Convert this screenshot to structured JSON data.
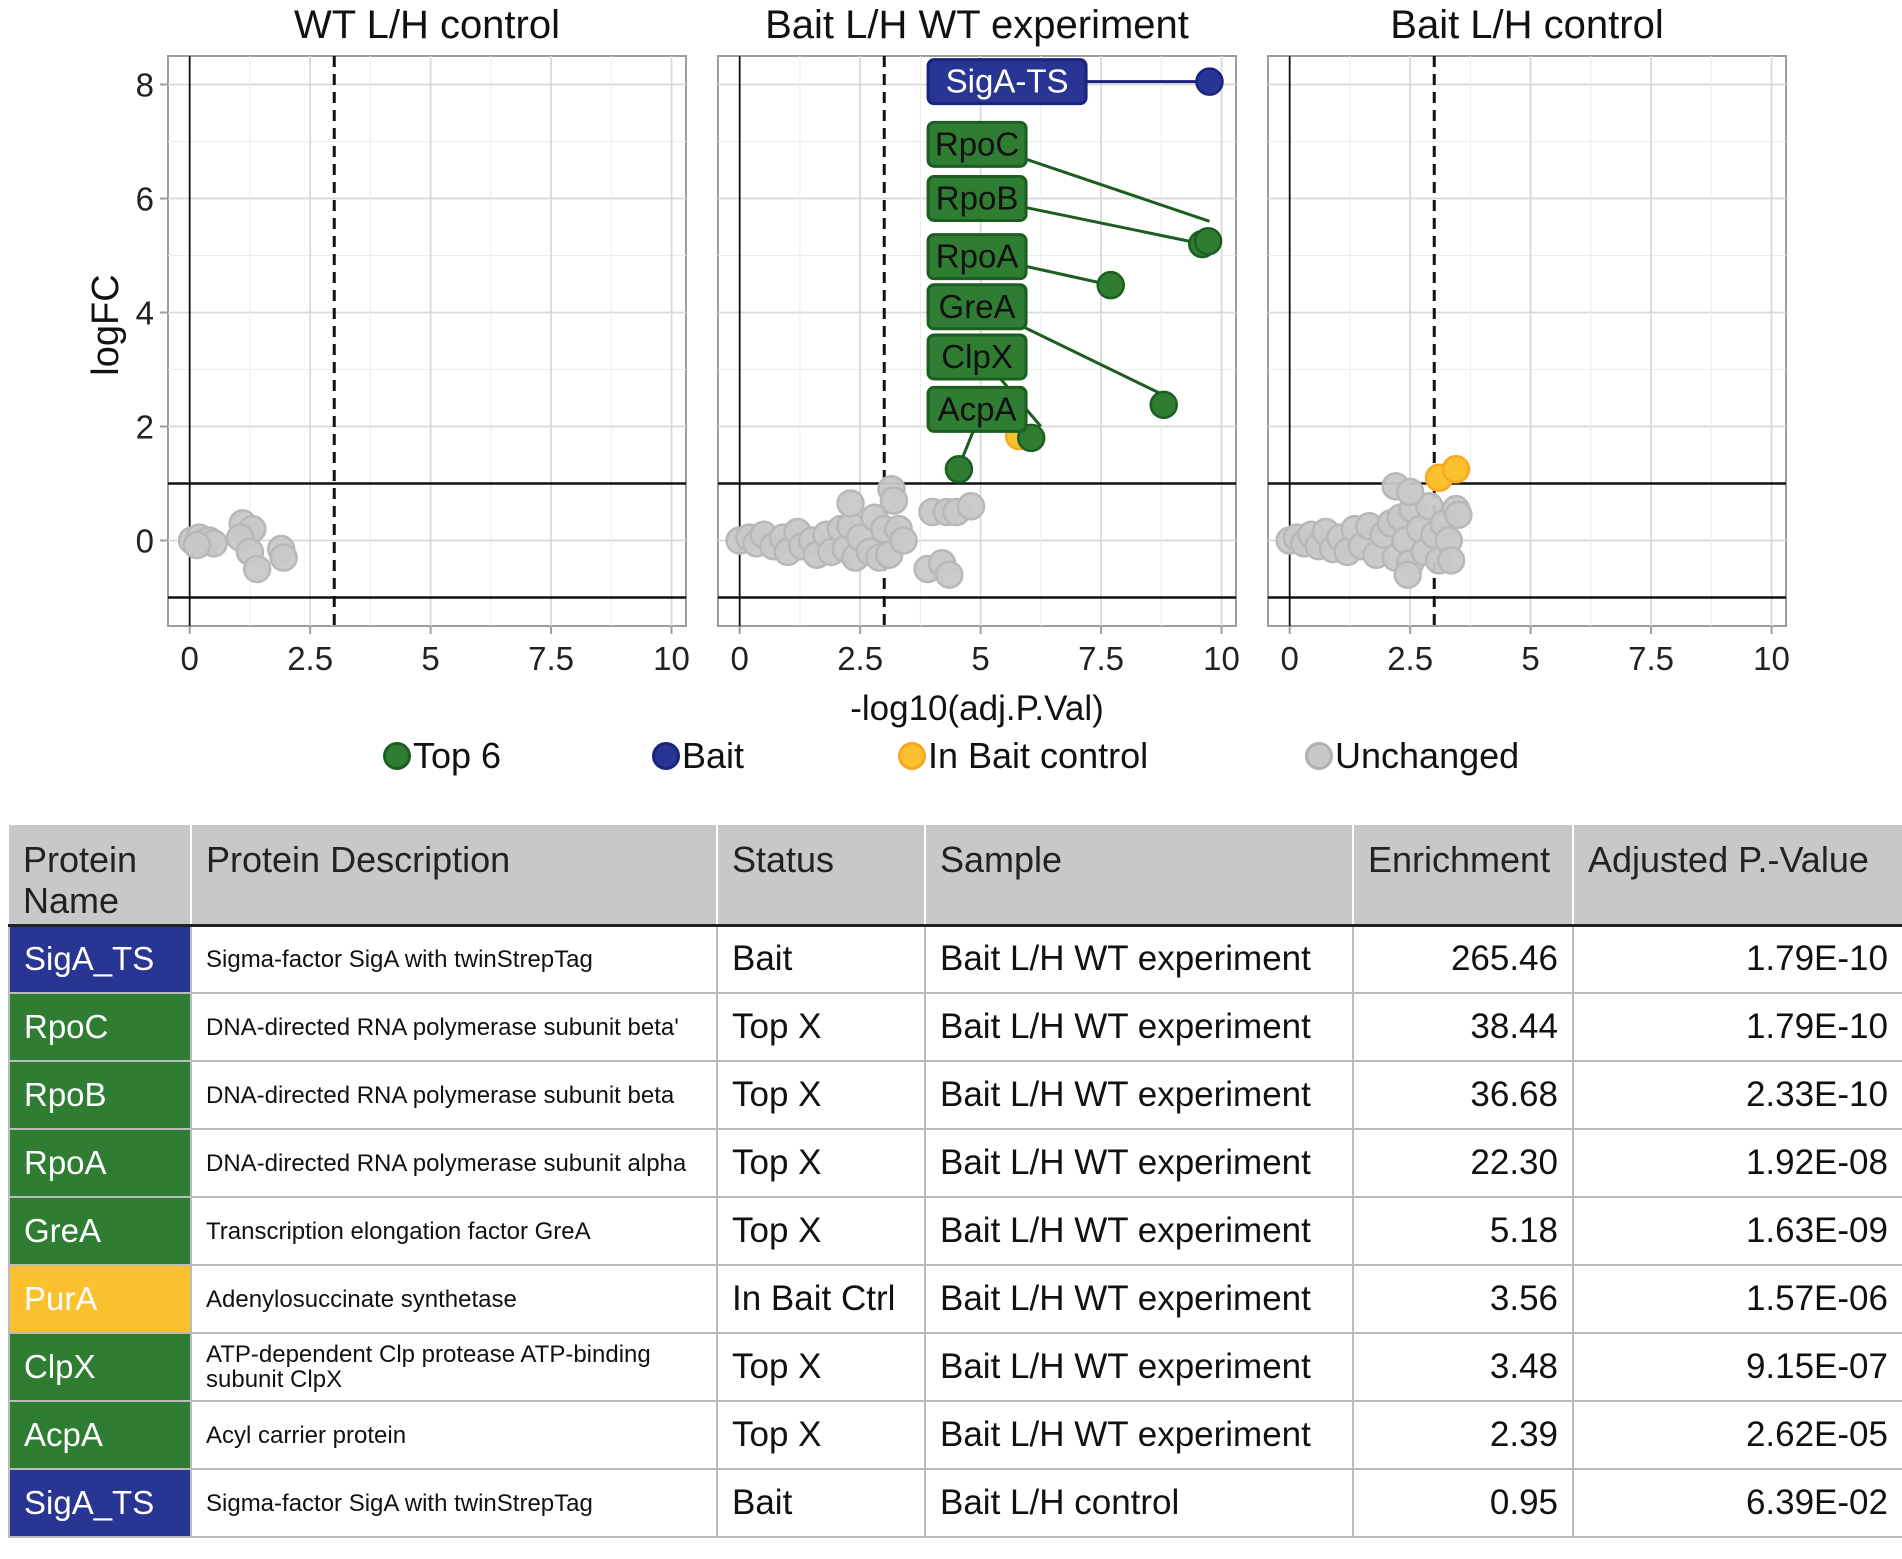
{
  "colors": {
    "top": "#2e7d32",
    "bait": "#283593",
    "ctrl": "#fbc02d",
    "unchanged": "#c8c8c8"
  },
  "chart_data": {
    "type": "scatter",
    "xlabel": "-log10(adj.P.Val)",
    "ylabel": "logFC",
    "xlim": [
      -0.45,
      10.3
    ],
    "ylim": [
      -1.5,
      8.5
    ],
    "xticks": [
      0,
      2.5,
      5,
      7.5,
      10
    ],
    "xtick_labels": [
      "0",
      "2.5",
      "5",
      "7.5",
      "10"
    ],
    "yticks": [
      0,
      2,
      4,
      6,
      8
    ],
    "ytick_labels": [
      "0",
      "2",
      "4",
      "6",
      "8"
    ],
    "hlines": [
      1,
      -1
    ],
    "vline_solid": 0,
    "vline_dashed": 3,
    "legend": [
      {
        "label": "Top 6",
        "color_key": "top"
      },
      {
        "label": "Bait",
        "color_key": "bait"
      },
      {
        "label": "In Bait control",
        "color_key": "ctrl"
      },
      {
        "label": "Unchanged",
        "color_key": "unchanged"
      }
    ],
    "panels": [
      {
        "title": "WT L/H control",
        "points": [
          {
            "x": 0.05,
            "y": 0.0,
            "g": "unchanged"
          },
          {
            "x": 0.2,
            "y": 0.05,
            "g": "unchanged"
          },
          {
            "x": 0.3,
            "y": -0.03,
            "g": "unchanged"
          },
          {
            "x": 0.4,
            "y": 0.0,
            "g": "unchanged"
          },
          {
            "x": 0.5,
            "y": -0.05,
            "g": "unchanged"
          },
          {
            "x": 0.15,
            "y": -0.08,
            "g": "unchanged"
          },
          {
            "x": 1.1,
            "y": 0.3,
            "g": "unchanged"
          },
          {
            "x": 1.2,
            "y": 0.1,
            "g": "unchanged"
          },
          {
            "x": 1.3,
            "y": 0.2,
            "g": "unchanged"
          },
          {
            "x": 1.05,
            "y": 0.05,
            "g": "unchanged"
          },
          {
            "x": 1.25,
            "y": -0.2,
            "g": "unchanged"
          },
          {
            "x": 1.4,
            "y": -0.5,
            "g": "unchanged"
          },
          {
            "x": 1.9,
            "y": -0.15,
            "g": "unchanged"
          },
          {
            "x": 1.95,
            "y": -0.3,
            "g": "unchanged"
          }
        ],
        "labels": []
      },
      {
        "title": "Bait L/H WT experiment",
        "points": [
          {
            "x": 0.0,
            "y": 0.0,
            "g": "unchanged"
          },
          {
            "x": 0.2,
            "y": 0.05,
            "g": "unchanged"
          },
          {
            "x": 0.35,
            "y": -0.05,
            "g": "unchanged"
          },
          {
            "x": 0.5,
            "y": 0.1,
            "g": "unchanged"
          },
          {
            "x": 0.7,
            "y": -0.1,
            "g": "unchanged"
          },
          {
            "x": 0.9,
            "y": 0.05,
            "g": "unchanged"
          },
          {
            "x": 1.0,
            "y": -0.2,
            "g": "unchanged"
          },
          {
            "x": 1.2,
            "y": 0.15,
            "g": "unchanged"
          },
          {
            "x": 1.3,
            "y": -0.1,
            "g": "unchanged"
          },
          {
            "x": 1.5,
            "y": 0.0,
            "g": "unchanged"
          },
          {
            "x": 1.6,
            "y": -0.25,
            "g": "unchanged"
          },
          {
            "x": 1.8,
            "y": 0.1,
            "g": "unchanged"
          },
          {
            "x": 1.9,
            "y": -0.2,
            "g": "unchanged"
          },
          {
            "x": 2.1,
            "y": 0.2,
            "g": "unchanged"
          },
          {
            "x": 2.2,
            "y": -0.15,
            "g": "unchanged"
          },
          {
            "x": 2.3,
            "y": 0.25,
            "g": "unchanged"
          },
          {
            "x": 2.4,
            "y": -0.3,
            "g": "unchanged"
          },
          {
            "x": 2.5,
            "y": 0.05,
            "g": "unchanged"
          },
          {
            "x": 2.7,
            "y": -0.2,
            "g": "unchanged"
          },
          {
            "x": 2.8,
            "y": 0.4,
            "g": "unchanged"
          },
          {
            "x": 2.9,
            "y": -0.3,
            "g": "unchanged"
          },
          {
            "x": 3.0,
            "y": 0.2,
            "g": "unchanged"
          },
          {
            "x": 3.1,
            "y": -0.25,
            "g": "unchanged"
          },
          {
            "x": 2.3,
            "y": 0.65,
            "g": "unchanged"
          },
          {
            "x": 3.15,
            "y": 0.9,
            "g": "unchanged"
          },
          {
            "x": 3.2,
            "y": 0.7,
            "g": "unchanged"
          },
          {
            "x": 3.3,
            "y": 0.2,
            "g": "unchanged"
          },
          {
            "x": 4.0,
            "y": 0.5,
            "g": "unchanged"
          },
          {
            "x": 4.3,
            "y": 0.5,
            "g": "unchanged"
          },
          {
            "x": 4.5,
            "y": 0.5,
            "g": "unchanged"
          },
          {
            "x": 4.8,
            "y": 0.6,
            "g": "unchanged"
          },
          {
            "x": 3.9,
            "y": -0.5,
            "g": "unchanged"
          },
          {
            "x": 4.2,
            "y": -0.4,
            "g": "unchanged"
          },
          {
            "x": 4.35,
            "y": -0.6,
            "g": "unchanged"
          },
          {
            "x": 3.4,
            "y": 0.0,
            "g": "unchanged"
          },
          {
            "x": 5.8,
            "y": 1.83,
            "g": "ctrl"
          },
          {
            "x": 4.55,
            "y": 1.25,
            "g": "top"
          },
          {
            "x": 6.05,
            "y": 1.8,
            "g": "top"
          },
          {
            "x": 8.8,
            "y": 2.38,
            "g": "top"
          },
          {
            "x": 7.7,
            "y": 4.48,
            "g": "top"
          },
          {
            "x": 9.6,
            "y": 5.2,
            "g": "top"
          },
          {
            "x": 9.72,
            "y": 5.25,
            "g": "top"
          },
          {
            "x": 9.75,
            "y": 8.05,
            "g": "bait"
          }
        ],
        "labels": [
          {
            "text": "SigA-TS",
            "g": "bait",
            "lx": 4.2,
            "ly": 8.05,
            "px": 9.75,
            "py": 8.05
          },
          {
            "text": "RpoC",
            "g": "top",
            "lx": 4.2,
            "ly": 6.95,
            "px": 9.75,
            "py": 5.6
          },
          {
            "text": "RpoB",
            "g": "top",
            "lx": 4.2,
            "ly": 6.0,
            "px": 9.62,
            "py": 5.2
          },
          {
            "text": "RpoA",
            "g": "top",
            "lx": 4.2,
            "ly": 4.98,
            "px": 7.7,
            "py": 4.48
          },
          {
            "text": "GreA",
            "g": "top",
            "lx": 4.2,
            "ly": 4.1,
            "px": 8.8,
            "py": 2.55
          },
          {
            "text": "ClpX",
            "g": "top",
            "lx": 4.2,
            "ly": 3.22,
            "px": 6.25,
            "py": 2.0
          },
          {
            "text": "AcpA",
            "g": "top",
            "lx": 4.2,
            "ly": 2.3,
            "px": 4.55,
            "py": 1.3
          }
        ]
      },
      {
        "title": "Bait L/H control",
        "points": [
          {
            "x": 0.0,
            "y": 0.0,
            "g": "unchanged"
          },
          {
            "x": 0.15,
            "y": 0.05,
            "g": "unchanged"
          },
          {
            "x": 0.3,
            "y": -0.05,
            "g": "unchanged"
          },
          {
            "x": 0.45,
            "y": 0.1,
            "g": "unchanged"
          },
          {
            "x": 0.6,
            "y": -0.1,
            "g": "unchanged"
          },
          {
            "x": 0.75,
            "y": 0.15,
            "g": "unchanged"
          },
          {
            "x": 0.9,
            "y": -0.15,
            "g": "unchanged"
          },
          {
            "x": 1.05,
            "y": 0.05,
            "g": "unchanged"
          },
          {
            "x": 1.2,
            "y": -0.2,
            "g": "unchanged"
          },
          {
            "x": 1.35,
            "y": 0.2,
            "g": "unchanged"
          },
          {
            "x": 1.5,
            "y": -0.1,
            "g": "unchanged"
          },
          {
            "x": 1.65,
            "y": 0.25,
            "g": "unchanged"
          },
          {
            "x": 1.8,
            "y": -0.25,
            "g": "unchanged"
          },
          {
            "x": 1.95,
            "y": 0.1,
            "g": "unchanged"
          },
          {
            "x": 2.1,
            "y": 0.3,
            "g": "unchanged"
          },
          {
            "x": 2.2,
            "y": -0.3,
            "g": "unchanged"
          },
          {
            "x": 2.3,
            "y": 0.4,
            "g": "unchanged"
          },
          {
            "x": 2.4,
            "y": 0.0,
            "g": "unchanged"
          },
          {
            "x": 2.5,
            "y": -0.4,
            "g": "unchanged"
          },
          {
            "x": 2.55,
            "y": 0.55,
            "g": "unchanged"
          },
          {
            "x": 2.7,
            "y": 0.2,
            "g": "unchanged"
          },
          {
            "x": 2.8,
            "y": -0.2,
            "g": "unchanged"
          },
          {
            "x": 2.9,
            "y": 0.6,
            "g": "unchanged"
          },
          {
            "x": 3.0,
            "y": 0.1,
            "g": "unchanged"
          },
          {
            "x": 3.1,
            "y": -0.35,
            "g": "unchanged"
          },
          {
            "x": 3.2,
            "y": 0.3,
            "g": "unchanged"
          },
          {
            "x": 3.3,
            "y": 0.0,
            "g": "unchanged"
          },
          {
            "x": 3.45,
            "y": 0.55,
            "g": "unchanged"
          },
          {
            "x": 3.5,
            "y": 0.45,
            "g": "unchanged"
          },
          {
            "x": 3.35,
            "y": -0.35,
            "g": "unchanged"
          },
          {
            "x": 2.2,
            "y": 0.95,
            "g": "unchanged"
          },
          {
            "x": 2.5,
            "y": 0.85,
            "g": "unchanged"
          },
          {
            "x": 2.45,
            "y": -0.6,
            "g": "unchanged"
          },
          {
            "x": 3.1,
            "y": 1.1,
            "g": "ctrl"
          },
          {
            "x": 3.45,
            "y": 1.25,
            "g": "ctrl"
          }
        ],
        "labels": []
      }
    ]
  },
  "table": {
    "headers": [
      "Protein Name",
      "Protein Description",
      "Status",
      "Sample",
      "Enrichment",
      "Adjusted P.-Value"
    ],
    "rows": [
      {
        "name": "SigA_TS",
        "color_key": "bait",
        "desc": "Sigma-factor SigA with twinStrepTag",
        "status": "Bait",
        "sample": "Bait L/H WT experiment",
        "enrichment": "265.46",
        "pval": "1.79E-10"
      },
      {
        "name": "RpoC",
        "color_key": "top",
        "desc": "DNA-directed RNA polymerase subunit beta'",
        "status": "Top X",
        "sample": "Bait L/H WT experiment",
        "enrichment": "38.44",
        "pval": "1.79E-10"
      },
      {
        "name": "RpoB",
        "color_key": "top",
        "desc": "DNA-directed RNA polymerase subunit beta",
        "status": "Top X",
        "sample": "Bait L/H WT experiment",
        "enrichment": "36.68",
        "pval": "2.33E-10"
      },
      {
        "name": "RpoA",
        "color_key": "top",
        "desc": "DNA-directed RNA polymerase subunit alpha",
        "status": "Top X",
        "sample": "Bait L/H WT experiment",
        "enrichment": "22.30",
        "pval": "1.92E-08"
      },
      {
        "name": "GreA",
        "color_key": "top",
        "desc": "Transcription elongation factor GreA",
        "status": "Top X",
        "sample": "Bait L/H WT experiment",
        "enrichment": "5.18",
        "pval": "1.63E-09"
      },
      {
        "name": "PurA",
        "color_key": "ctrl",
        "desc": "Adenylosuccinate synthetase",
        "status": "In Bait Ctrl",
        "sample": "Bait L/H WT experiment",
        "enrichment": "3.56",
        "pval": "1.57E-06"
      },
      {
        "name": "ClpX",
        "color_key": "top",
        "desc": "ATP-dependent Clp protease ATP-binding subunit ClpX",
        "status": "Top X",
        "sample": "Bait L/H WT experiment",
        "enrichment": "3.48",
        "pval": "9.15E-07"
      },
      {
        "name": "AcpA",
        "color_key": "top",
        "desc": "Acyl carrier protein",
        "status": "Top X",
        "sample": "Bait L/H WT experiment",
        "enrichment": "2.39",
        "pval": "2.62E-05"
      },
      {
        "name": "SigA_TS",
        "color_key": "bait",
        "desc": "Sigma-factor SigA with twinStrepTag",
        "status": "Bait",
        "sample": "Bait L/H control",
        "enrichment": "0.95",
        "pval": "6.39E-02"
      }
    ]
  }
}
